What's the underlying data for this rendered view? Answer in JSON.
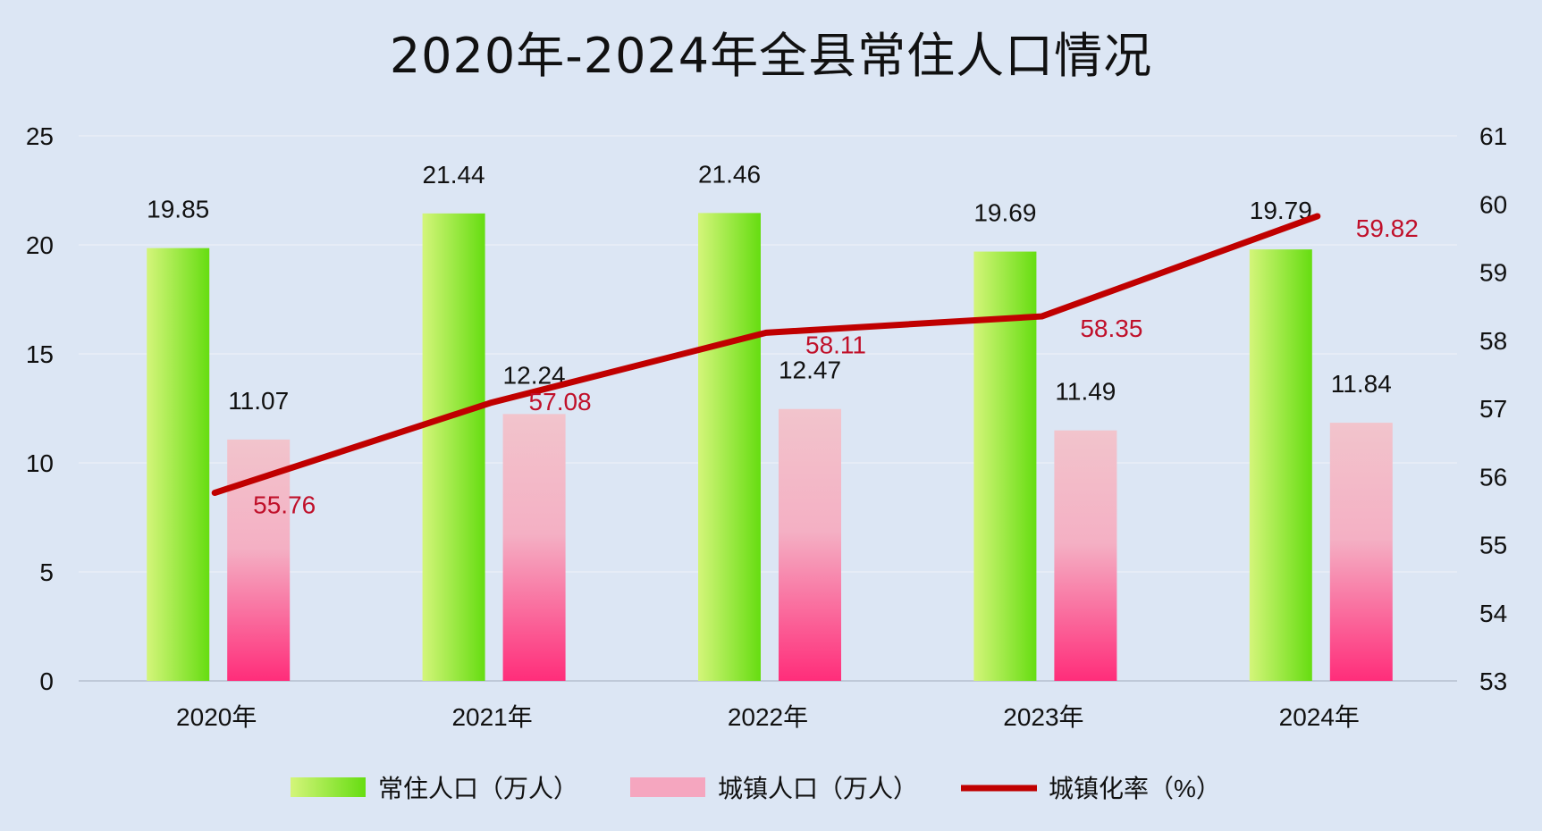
{
  "chart_data": {
    "type": "bar",
    "title": "2020年-2024年全县常住人口情况",
    "categories": [
      "2020年",
      "2021年",
      "2022年",
      "2023年",
      "2024年"
    ],
    "series": [
      {
        "name": "常住人口（万人）",
        "type": "bar",
        "axis": "left",
        "values": [
          19.85,
          21.44,
          21.46,
          19.69,
          19.79
        ],
        "labels": [
          "19.85",
          "21.44",
          "21.46",
          "19.69",
          "19.79"
        ],
        "color_top": "#66dd11",
        "color_bottom": "#d4f57a"
      },
      {
        "name": "城镇人口（万人）",
        "type": "bar",
        "axis": "left",
        "values": [
          11.07,
          12.24,
          12.47,
          11.49,
          11.84
        ],
        "labels": [
          "11.07",
          "12.24",
          "12.47",
          "11.49",
          "11.84"
        ],
        "color_top": "#f2c4cc",
        "color_bottom": "#ff2d7a"
      },
      {
        "name": "城镇化率（%）",
        "type": "line",
        "axis": "right",
        "values": [
          55.76,
          57.08,
          58.11,
          58.35,
          59.82
        ],
        "labels": [
          "55.76",
          "57.08",
          "58.11",
          "58.35",
          "59.82"
        ],
        "color": "#c00000"
      }
    ],
    "left_axis": {
      "ylim": [
        0,
        25
      ],
      "ticks": [
        0,
        5,
        10,
        15,
        20,
        25
      ],
      "tick_labels": [
        "0",
        "5",
        "10",
        "15",
        "20",
        "25"
      ]
    },
    "right_axis": {
      "ylim": [
        53,
        61
      ],
      "ticks": [
        53,
        54,
        55,
        56,
        57,
        58,
        59,
        60,
        61
      ],
      "tick_labels": [
        "53",
        "54",
        "55",
        "56",
        "57",
        "58",
        "59",
        "60",
        "61"
      ]
    },
    "grid": true,
    "legend_position": "bottom",
    "background": "#dce6f4",
    "label_color": "#111111",
    "line_label_color": "#c0102a"
  }
}
